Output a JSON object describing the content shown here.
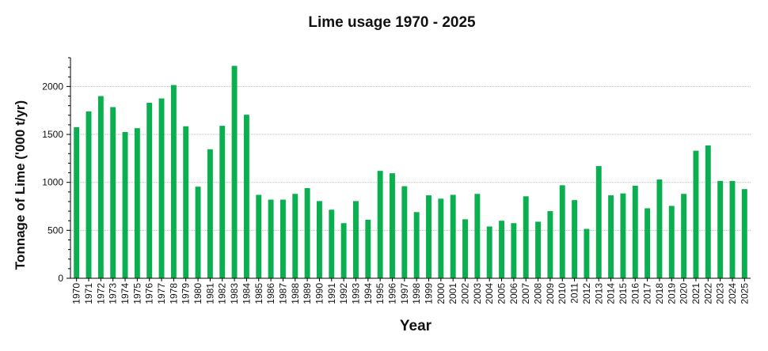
{
  "chart_data": {
    "type": "bar",
    "title": "Lime usage 1970 - 2025",
    "xlabel": "Year",
    "ylabel": "Tonnage of Lime ('000 t/yr)",
    "ylim": [
      0,
      2300
    ],
    "yticks": [
      0,
      500,
      1000,
      1500,
      2000
    ],
    "grid": true,
    "bar_color": "#0aaf4f",
    "categories": [
      "1970",
      "1971",
      "1972",
      "1973",
      "1974",
      "1975",
      "1976",
      "1977",
      "1978",
      "1979",
      "1980",
      "1981",
      "1982",
      "1983",
      "1984",
      "1985",
      "1986",
      "1987",
      "1988",
      "1989",
      "1990",
      "1991",
      "1992",
      "1993",
      "1994",
      "1995",
      "1996",
      "1997",
      "1998",
      "1999",
      "2000",
      "2001",
      "2002",
      "2003",
      "2004",
      "2005",
      "2006",
      "2007",
      "2008",
      "2009",
      "2010",
      "2011",
      "2012",
      "2013",
      "2014",
      "2015",
      "2016",
      "2017",
      "2018",
      "2019",
      "2020",
      "2021",
      "2022",
      "2023",
      "2024",
      "2025"
    ],
    "values": [
      1575,
      1740,
      1900,
      1785,
      1525,
      1565,
      1830,
      1875,
      2015,
      1585,
      955,
      1345,
      1590,
      2215,
      1705,
      870,
      820,
      820,
      880,
      940,
      805,
      715,
      575,
      805,
      610,
      1120,
      1095,
      960,
      690,
      865,
      830,
      870,
      615,
      880,
      540,
      600,
      575,
      855,
      590,
      700,
      970,
      815,
      515,
      1170,
      865,
      885,
      965,
      730,
      1030,
      755,
      880,
      1330,
      1385,
      1015,
      1015,
      930
    ]
  }
}
